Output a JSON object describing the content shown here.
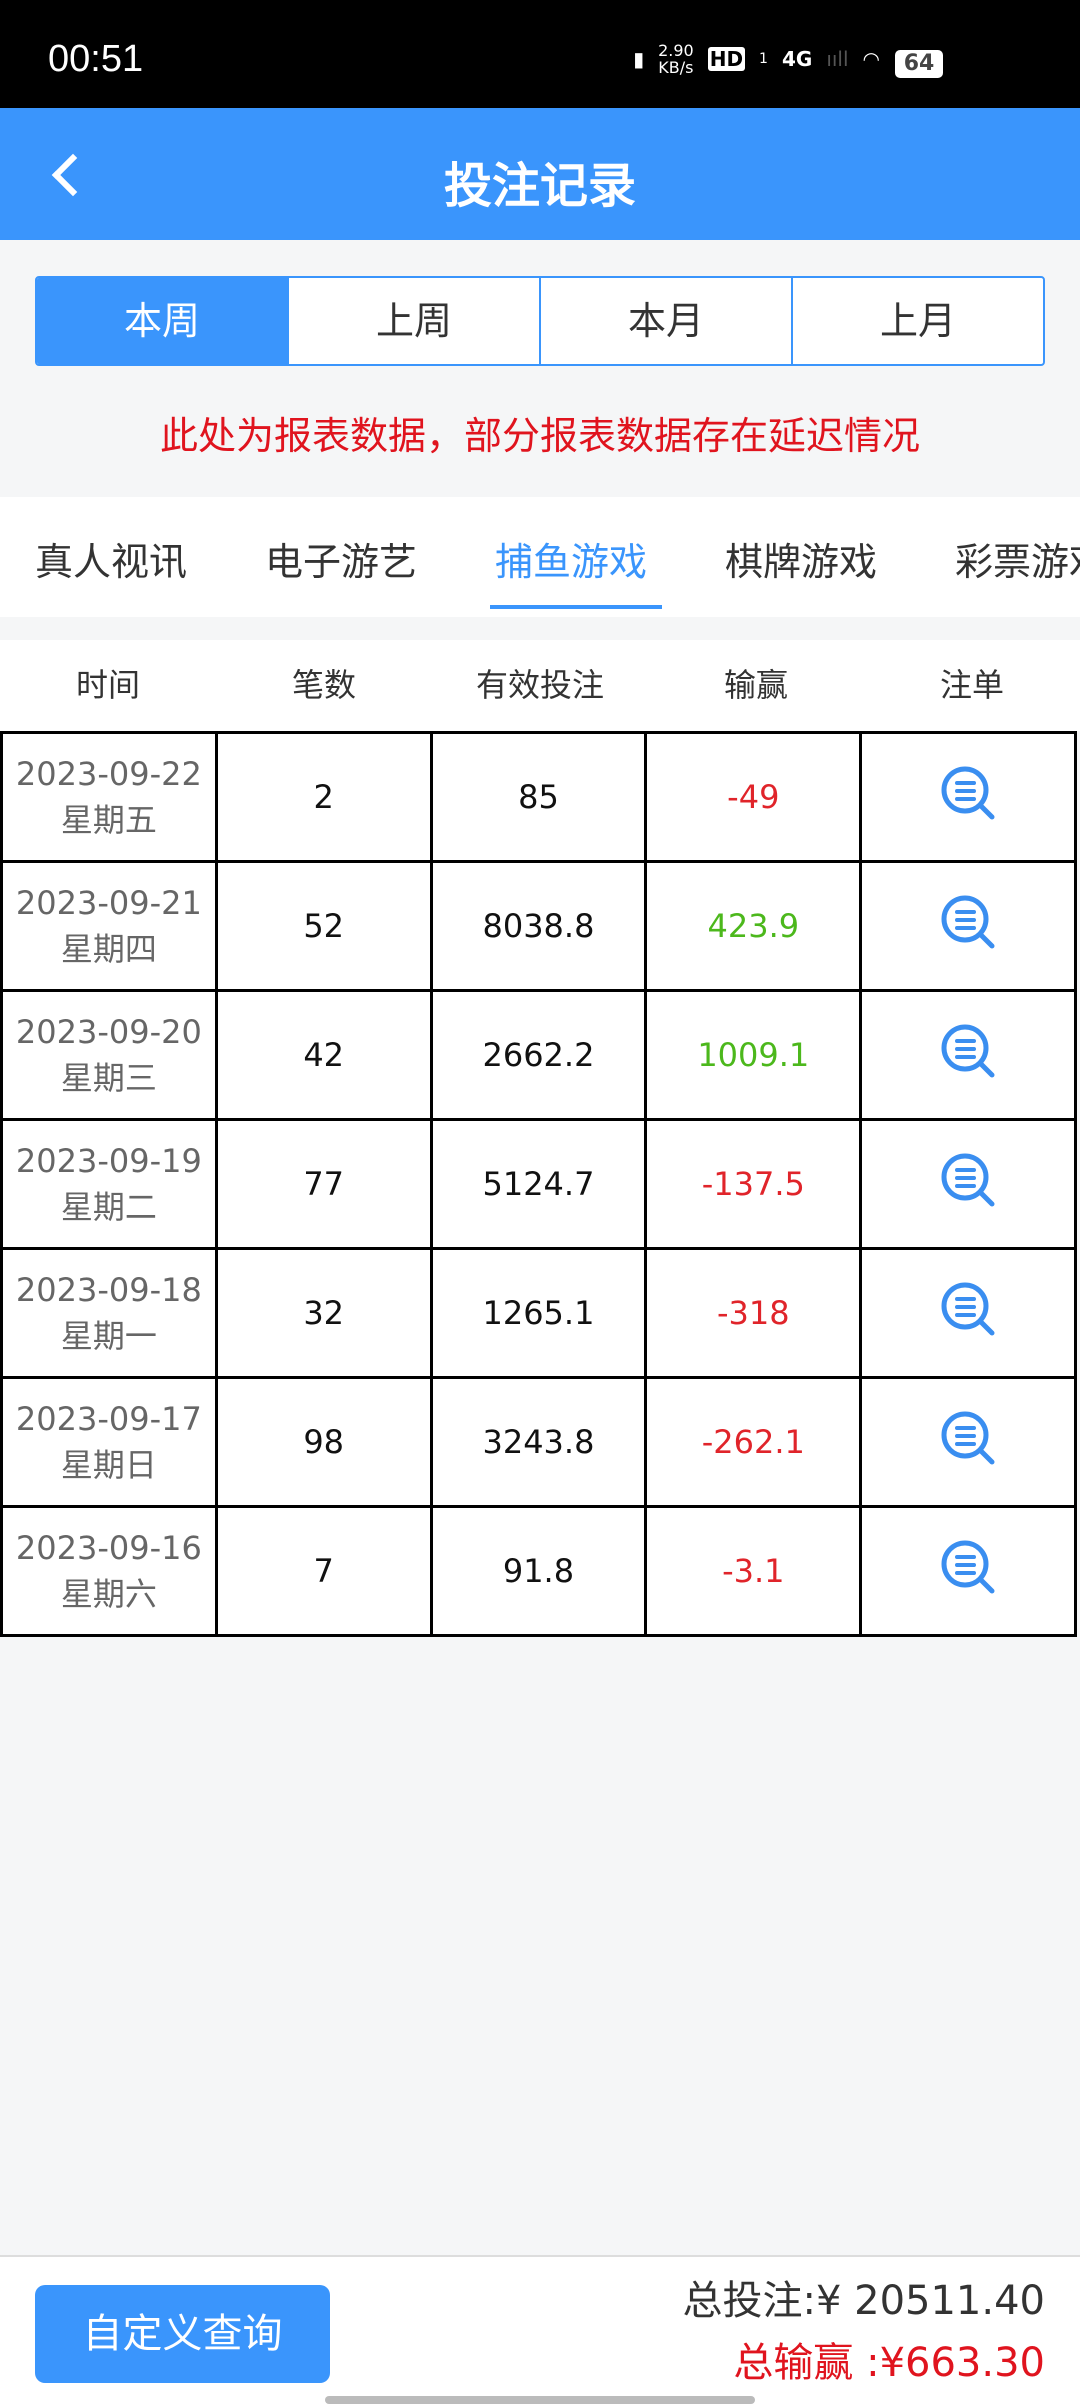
{
  "status": {
    "time": "00:51",
    "speed": "2.90",
    "speed_unit": "KB/s",
    "network": "4G",
    "hd": "HD",
    "sim": "1",
    "battery": "64"
  },
  "header": {
    "title": "投注记录"
  },
  "periods": [
    "本周",
    "上周",
    "本月",
    "上月"
  ],
  "notice": "此处为报表数据，部分报表数据存在延迟情况",
  "categories": [
    "真人视讯",
    "电子游艺",
    "捕鱼游戏",
    "棋牌游戏",
    "彩票游戏"
  ],
  "active_category": "捕鱼游戏",
  "columns": [
    "时间",
    "笔数",
    "有效投注",
    "输赢",
    "注单"
  ],
  "rows": [
    {
      "date": "2023-09-22",
      "weekday": "星期五",
      "count": "2",
      "valid": "85",
      "win": "-49"
    },
    {
      "date": "2023-09-21",
      "weekday": "星期四",
      "count": "52",
      "valid": "8038.8",
      "win": "423.9"
    },
    {
      "date": "2023-09-20",
      "weekday": "星期三",
      "count": "42",
      "valid": "2662.2",
      "win": "1009.1"
    },
    {
      "date": "2023-09-19",
      "weekday": "星期二",
      "count": "77",
      "valid": "5124.7",
      "win": "-137.5"
    },
    {
      "date": "2023-09-18",
      "weekday": "星期一",
      "count": "32",
      "valid": "1265.1",
      "win": "-318"
    },
    {
      "date": "2023-09-17",
      "weekday": "星期日",
      "count": "98",
      "valid": "3243.8",
      "win": "-262.1"
    },
    {
      "date": "2023-09-16",
      "weekday": "星期六",
      "count": "7",
      "valid": "91.8",
      "win": "-3.1"
    }
  ],
  "footer": {
    "custom_query": "自定义查询",
    "total_bet": "总投注:¥ 20511.40",
    "total_win": "总输赢 :¥663.30"
  },
  "colors": {
    "brand": "#3a95fc",
    "loss": "#e0242a",
    "gain": "#4cb81c"
  }
}
